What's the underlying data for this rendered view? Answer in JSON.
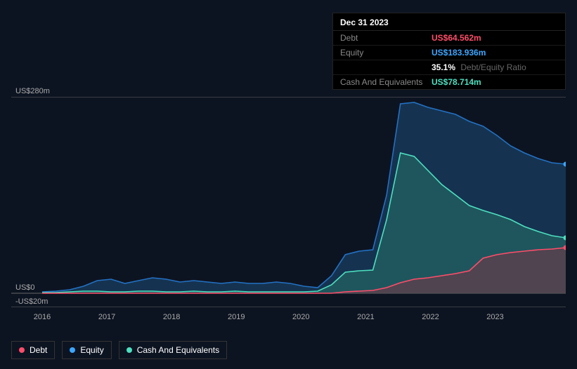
{
  "tooltip": {
    "date": "Dec 31 2023",
    "rows": [
      {
        "label": "Debt",
        "value": "US$64.562m",
        "color": "#ff4d6a"
      },
      {
        "label": "Equity",
        "value": "US$183.936m",
        "color": "#3ca6ff"
      },
      {
        "label": "",
        "pct": "35.1%",
        "pctLabel": "Debt/Equity Ratio"
      },
      {
        "label": "Cash And Equivalents",
        "value": "US$78.714m",
        "color": "#4de0c0"
      }
    ]
  },
  "chart": {
    "type": "area",
    "background": "#0d1421",
    "ylim": [
      -20,
      280
    ],
    "ymax_label": "US$280m",
    "yzero_label": "US$0",
    "ymin_label": "-US$20m",
    "years": [
      "2016",
      "2017",
      "2018",
      "2019",
      "2020",
      "2021",
      "2022",
      "2023"
    ],
    "grid_color": "#2a3544",
    "axis_color": "#666",
    "series": {
      "equity": {
        "color": "#2371c4",
        "fill": "#1e4d78",
        "fillOpacity": 0.55,
        "label": "Equity",
        "dot": "#3ca6ff",
        "values": [
          2,
          3,
          5,
          10,
          18,
          20,
          14,
          18,
          22,
          20,
          16,
          18,
          16,
          14,
          16,
          14,
          14,
          16,
          14,
          10,
          8,
          25,
          55,
          60,
          62,
          140,
          270,
          272,
          265,
          260,
          255,
          245,
          238,
          225,
          210,
          200,
          192,
          186,
          184
        ]
      },
      "cash": {
        "color": "#4de0c0",
        "fill": "#2a7a6a",
        "fillOpacity": 0.5,
        "label": "Cash And Equivalents",
        "dot": "#4de0c0",
        "values": [
          1,
          1,
          2,
          3,
          3,
          2,
          2,
          3,
          3,
          2,
          2,
          3,
          2,
          2,
          3,
          2,
          2,
          2,
          2,
          2,
          3,
          12,
          30,
          32,
          33,
          105,
          200,
          195,
          175,
          155,
          140,
          125,
          118,
          112,
          105,
          95,
          88,
          82,
          79
        ]
      },
      "debt": {
        "color": "#ff4d6a",
        "fill": "#8a2f3e",
        "fillOpacity": 0.45,
        "label": "Debt",
        "dot": "#ff4d6a",
        "values": [
          0,
          0,
          0,
          0,
          0,
          0,
          0,
          0,
          0,
          0,
          0,
          0,
          0,
          0,
          0,
          0,
          0,
          0,
          0,
          0,
          0,
          0,
          2,
          3,
          4,
          8,
          15,
          20,
          22,
          25,
          28,
          32,
          50,
          55,
          58,
          60,
          62,
          63,
          65
        ]
      }
    },
    "legend": [
      {
        "key": "debt",
        "label": "Debt",
        "color": "#ff4d6a"
      },
      {
        "key": "equity",
        "label": "Equity",
        "color": "#3ca6ff"
      },
      {
        "key": "cash",
        "label": "Cash And Equivalents",
        "color": "#4de0c0"
      }
    ]
  }
}
